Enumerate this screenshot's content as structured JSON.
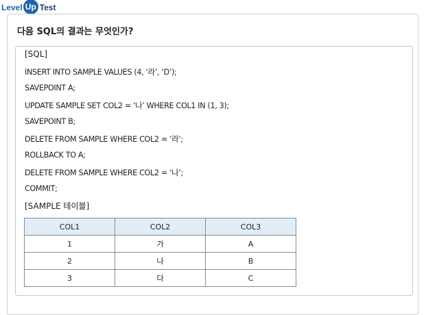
{
  "brand": {
    "level": "Level",
    "up": "Up",
    "test": "Test"
  },
  "question": "다음 SQL의 결과는 무엇인가?",
  "sql_title": "[SQL]",
  "sql_lines": [
    "INSERT INTO SAMPLE VALUES (4, ‘라’, ‘D’);",
    "SAVEPOINT A;",
    "UPDATE SAMPLE SET COL2 = ‘나’ WHERE COL1 IN (1, 3);",
    "SAVEPOINT B;",
    "DELETE FROM SAMPLE WHERE COL2 = ‘라’;",
    "ROLLBACK TO A;",
    "DELETE FROM SAMPLE WHERE COL2 = ‘나’;",
    "COMMIT;"
  ],
  "table_title": "[SAMPLE 테이블]",
  "table": {
    "headers": [
      "COL1",
      "COL2",
      "COL3"
    ],
    "rows": [
      [
        "1",
        "가",
        "A"
      ],
      [
        "2",
        "나",
        "B"
      ],
      [
        "3",
        "다",
        "C"
      ]
    ]
  }
}
